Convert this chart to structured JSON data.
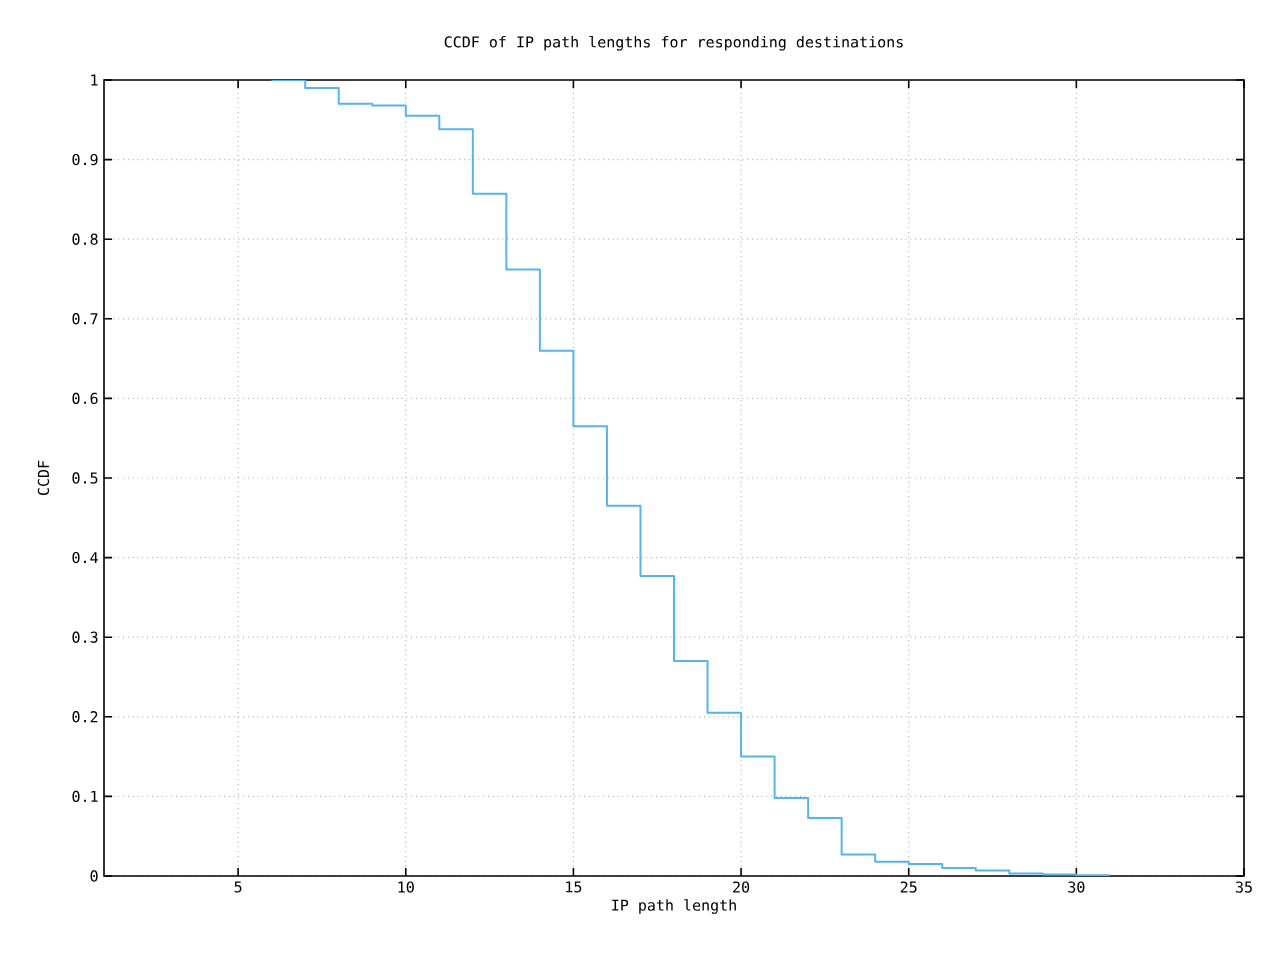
{
  "chart_data": {
    "type": "step",
    "title": "CCDF of IP path lengths for responding destinations",
    "xlabel": "IP path length",
    "ylabel": "CCDF",
    "x": [
      6,
      7,
      8,
      9,
      10,
      11,
      12,
      13,
      14,
      15,
      16,
      17,
      18,
      19,
      20,
      21,
      22,
      23,
      24,
      25,
      26,
      27,
      28,
      29,
      30,
      31
    ],
    "series": [
      {
        "color": "#56b4e9",
        "values": [
          1,
          0.99,
          0.97,
          0.968,
          0.955,
          0.938,
          0.857,
          0.762,
          0.66,
          0.565,
          0.465,
          0.377,
          0.27,
          0.205,
          0.15,
          0.098,
          0.073,
          0.027,
          0.018,
          0.015,
          0.01,
          0.007,
          0.003,
          0.002,
          0.001,
          0.001
        ]
      }
    ],
    "xlim": [
      1,
      35
    ],
    "ylim": [
      0,
      1
    ],
    "xticks": [
      5,
      10,
      15,
      20,
      25,
      30,
      35
    ],
    "yticks": [
      0,
      0.1,
      0.2,
      0.3,
      0.4,
      0.5,
      0.6,
      0.7,
      0.8,
      0.9,
      1
    ],
    "grid": true,
    "line_style": "solid",
    "marker": "none"
  }
}
